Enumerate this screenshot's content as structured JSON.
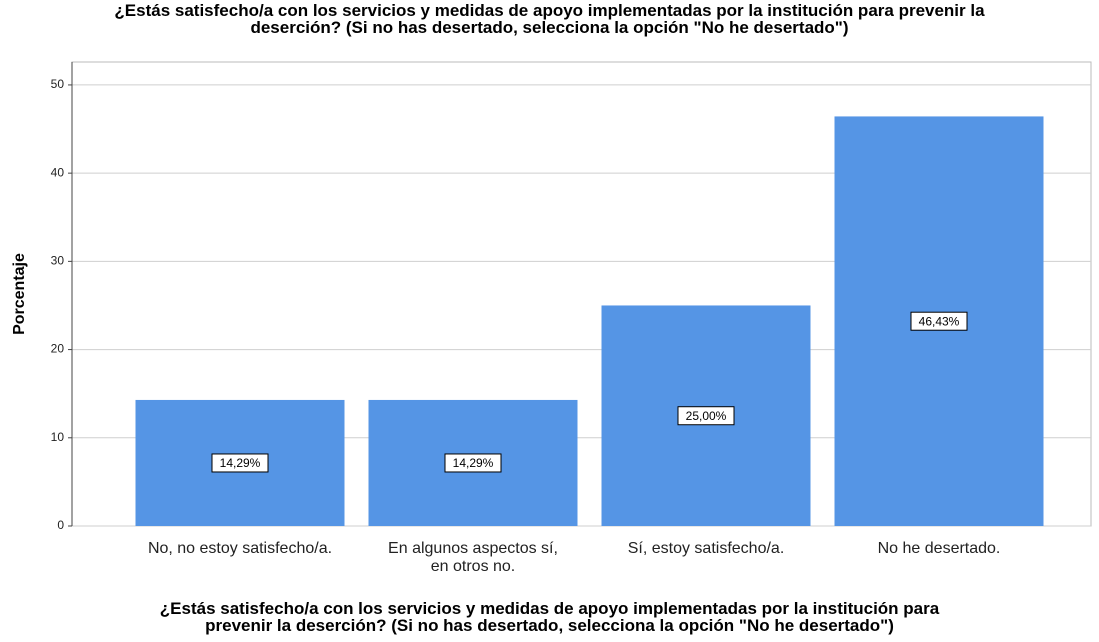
{
  "chart_data": {
    "type": "bar",
    "title": [
      "¿Estás satisfecho/a con los servicios y medidas de apoyo implementadas por la institución para prevenir la",
      "deserción? (Si no has desertado, selecciona la opción \"No he desertado\")"
    ],
    "xlabel": [
      "¿Estás satisfecho/a con los servicios y medidas de apoyo implementadas por la institución para",
      "prevenir la deserción? (Si no has desertado, selecciona la opción \"No he desertado\")"
    ],
    "ylabel": "Porcentaje",
    "categories": [
      "No, no estoy satisfecho/a.",
      "En algunos aspectos sí, en otros no.",
      "Sí, estoy satisfecho/a.",
      "No he desertado."
    ],
    "values": [
      14.29,
      14.29,
      25.0,
      46.43
    ],
    "value_labels": [
      "14,29%",
      "14,29%",
      "25,00%",
      "46,43%"
    ],
    "color": "#5595e5",
    "ylim": [
      0,
      52.6
    ],
    "yticks": [
      0,
      10,
      20,
      30,
      40,
      50
    ],
    "grid": true
  }
}
